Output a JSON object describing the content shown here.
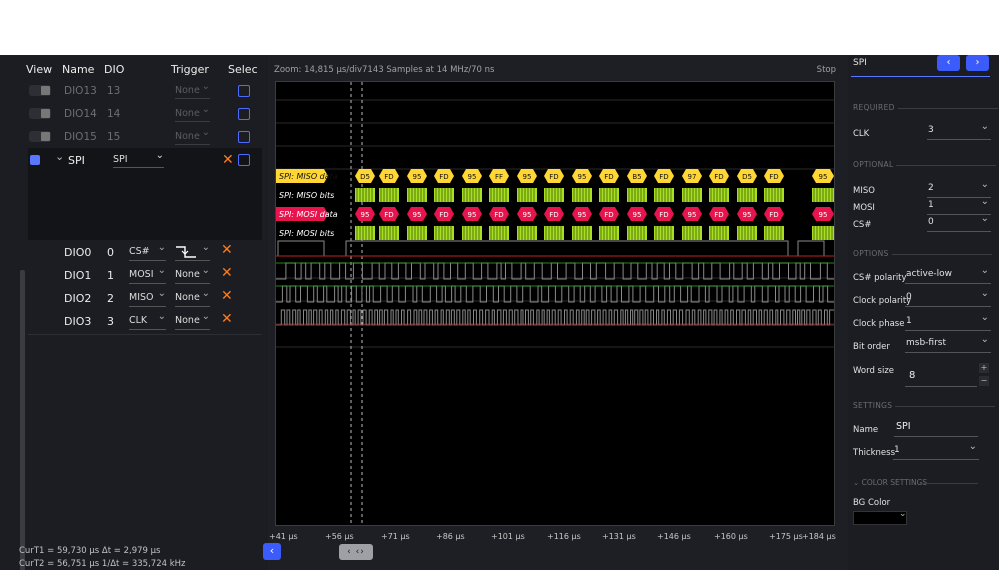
{
  "left_panel": {
    "columns": [
      "View",
      "Name",
      "DIO",
      "Trigger",
      "Selec"
    ],
    "dim_rows": [
      {
        "name": "DIO13",
        "dio": "13",
        "trigger": "None"
      },
      {
        "name": "DIO14",
        "dio": "14",
        "trigger": "None"
      },
      {
        "name": "DIO15",
        "dio": "15",
        "trigger": "None"
      }
    ],
    "spi": {
      "name": "SPI",
      "protocol": "SPI"
    },
    "channels": [
      {
        "name": "DIO0",
        "dio": "0",
        "signal": "CS#",
        "trigger": ""
      },
      {
        "name": "DIO1",
        "dio": "1",
        "signal": "MOSI",
        "trigger": "None"
      },
      {
        "name": "DIO2",
        "dio": "2",
        "signal": "MISO",
        "trigger": "None"
      },
      {
        "name": "DIO3",
        "dio": "3",
        "signal": "CLK",
        "trigger": "None"
      }
    ],
    "cursor1": "CurT1 = 59,730 μs   Δt = 2,979 μs",
    "cursor2": "CurT2 = 56,751 μs  1/Δt = 335,724 kHz"
  },
  "waveform": {
    "zoom": "Zoom: 14,815 μs/div7143 Samples at 14 MHz/70 ns",
    "stop": "Stop",
    "lanes": [
      "SPI: MISO data",
      "SPI: MISO bits",
      "SPI: MOSI data",
      "SPI: MOSI bits"
    ],
    "miso_data": [
      "D5",
      "FD",
      "95",
      "FD",
      "95",
      "FF",
      "95",
      "FD",
      "95",
      "FD",
      "B5",
      "FD",
      "97",
      "FD",
      "D5",
      "FD",
      "95"
    ],
    "mosi_data": [
      "95",
      "FD",
      "95",
      "FD",
      "95",
      "FD",
      "95",
      "FD",
      "95",
      "FD",
      "95",
      "FD",
      "95",
      "FD",
      "95",
      "FD",
      "95"
    ],
    "time_ticks": [
      "+41 μs",
      "+56 μs",
      "+71 μs",
      "+86 μs",
      "+101 μs",
      "+116 μs",
      "+131 μs",
      "+146 μs",
      "+160 μs",
      "+175 μs",
      "+184 μs"
    ],
    "nav_mid": "‹ ‹›",
    "nav_left": "‹",
    "colors": {
      "miso": "#ffd633",
      "mosi": "#e8144e",
      "bits": "#a8e021",
      "green": "#2fb52f",
      "red": "#c02424",
      "gray": "#8a8a8a"
    }
  },
  "right_panel": {
    "protocol": "SPI",
    "prev": "‹",
    "next": "›",
    "sec_required": "REQUIRED",
    "clk_label": "CLK",
    "clk_value": "3",
    "sec_optional": "OPTIONAL",
    "miso_label": "MISO",
    "miso_value": "2",
    "mosi_label": "MOSI",
    "mosi_value": "1",
    "cs_label": "CS#",
    "cs_value": "0",
    "sec_options": "OPTIONS",
    "cs_pol_label": "CS# polarity",
    "cs_pol_value": "active-low",
    "clk_pol_label": "Clock polarity",
    "clk_pol_value": "0",
    "clk_phase_label": "Clock phase",
    "clk_phase_value": "1",
    "bit_order_label": "Bit order",
    "bit_order_value": "msb-first",
    "word_size_label": "Word size",
    "word_size_value": "8",
    "sec_settings": "SETTINGS",
    "name_label": "Name",
    "name_value": "SPI",
    "thickness_label": "Thickness",
    "thickness_value": "1",
    "sec_color": "COLOR SETTINGS",
    "bg_color_label": "BG Color"
  }
}
